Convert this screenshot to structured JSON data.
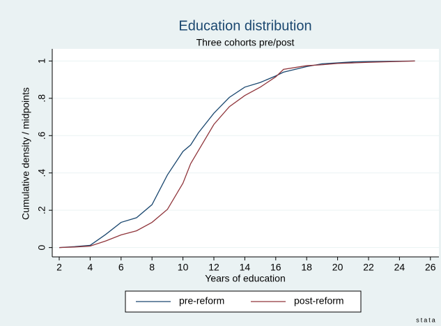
{
  "chart_data": {
    "type": "line",
    "title": "Education distribution",
    "subtitle": "Three cohorts pre/post",
    "x_label": "Years of education",
    "y_label": "Cumulative density / midpoints",
    "x": [
      2,
      3,
      4,
      5,
      6,
      7,
      8,
      9,
      10,
      10.5,
      11,
      12,
      13,
      14,
      15,
      16,
      16.5,
      18,
      19,
      20,
      21,
      22,
      25
    ],
    "series": [
      {
        "name": "pre-reform",
        "color": "#1a476f",
        "values": [
          0,
          0.005,
          0.012,
          0.07,
          0.135,
          0.16,
          0.23,
          0.39,
          0.515,
          0.55,
          0.615,
          0.72,
          0.805,
          0.86,
          0.885,
          0.92,
          0.94,
          0.97,
          0.985,
          0.99,
          0.995,
          0.997,
          1
        ]
      },
      {
        "name": "post-reform",
        "color": "#90353b",
        "values": [
          0,
          0.003,
          0.008,
          0.035,
          0.068,
          0.09,
          0.135,
          0.205,
          0.345,
          0.45,
          0.52,
          0.66,
          0.755,
          0.815,
          0.86,
          0.915,
          0.955,
          0.975,
          0.98,
          0.987,
          0.99,
          0.993,
          1
        ]
      }
    ],
    "xlim": [
      1.55,
      26.55
    ],
    "ylim": [
      -0.05,
      1.065
    ],
    "xticks": [
      2,
      4,
      6,
      8,
      10,
      12,
      14,
      16,
      18,
      20,
      22,
      24,
      26
    ],
    "yticks": [
      0,
      {
        "value": 0.2,
        "label": ".2"
      },
      {
        "value": 0.4,
        "label": ".4"
      },
      {
        "value": 0.6,
        "label": ".6"
      },
      {
        "value": 0.8,
        "label": ".8"
      },
      1
    ],
    "grid": true,
    "legend": "bottom",
    "logo": "stata"
  }
}
